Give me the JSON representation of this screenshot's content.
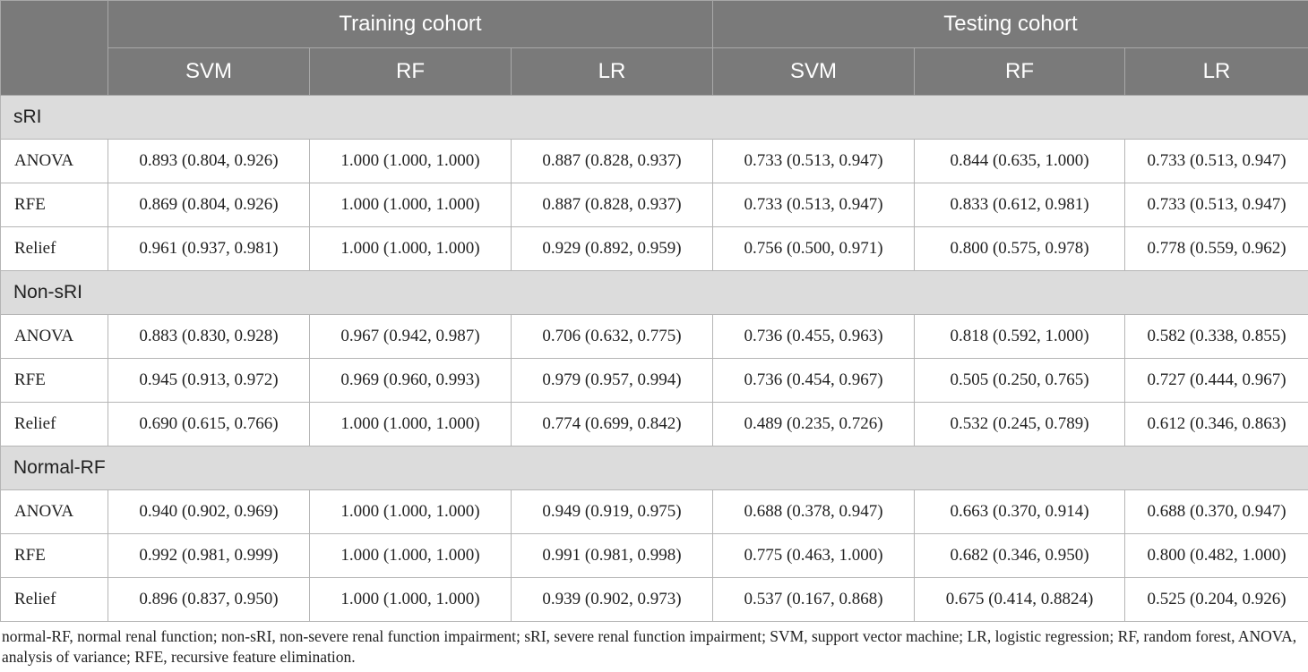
{
  "header": {
    "corner": "",
    "cohorts": [
      "Training cohort",
      "Testing cohort"
    ],
    "models": [
      "SVM",
      "RF",
      "LR",
      "SVM",
      "RF",
      "LR"
    ]
  },
  "groups": [
    {
      "name": "sRI",
      "rows": [
        {
          "method": "ANOVA",
          "values": [
            "0.893 (0.804, 0.926)",
            "1.000 (1.000, 1.000)",
            "0.887 (0.828, 0.937)",
            "0.733 (0.513, 0.947)",
            "0.844 (0.635, 1.000)",
            "0.733 (0.513, 0.947)"
          ]
        },
        {
          "method": "RFE",
          "values": [
            "0.869 (0.804, 0.926)",
            "1.000 (1.000, 1.000)",
            "0.887 (0.828, 0.937)",
            "0.733 (0.513, 0.947)",
            "0.833 (0.612, 0.981)",
            "0.733 (0.513, 0.947)"
          ]
        },
        {
          "method": "Relief",
          "values": [
            "0.961 (0.937, 0.981)",
            "1.000 (1.000, 1.000)",
            "0.929 (0.892, 0.959)",
            "0.756 (0.500, 0.971)",
            "0.800 (0.575, 0.978)",
            "0.778 (0.559, 0.962)"
          ]
        }
      ]
    },
    {
      "name": "Non-sRI",
      "rows": [
        {
          "method": "ANOVA",
          "values": [
            "0.883 (0.830, 0.928)",
            "0.967 (0.942, 0.987)",
            "0.706 (0.632, 0.775)",
            "0.736 (0.455, 0.963)",
            "0.818 (0.592, 1.000)",
            "0.582 (0.338, 0.855)"
          ]
        },
        {
          "method": "RFE",
          "values": [
            "0.945 (0.913, 0.972)",
            "0.969 (0.960, 0.993)",
            "0.979 (0.957, 0.994)",
            "0.736 (0.454, 0.967)",
            "0.505 (0.250, 0.765)",
            "0.727 (0.444, 0.967)"
          ]
        },
        {
          "method": "Relief",
          "values": [
            "0.690 (0.615, 0.766)",
            "1.000 (1.000, 1.000)",
            "0.774 (0.699, 0.842)",
            "0.489 (0.235, 0.726)",
            "0.532 (0.245, 0.789)",
            "0.612 (0.346, 0.863)"
          ]
        }
      ]
    },
    {
      "name": "Normal-RF",
      "rows": [
        {
          "method": "ANOVA",
          "values": [
            "0.940 (0.902, 0.969)",
            "1.000 (1.000, 1.000)",
            "0.949 (0.919, 0.975)",
            "0.688 (0.378, 0.947)",
            "0.663 (0.370, 0.914)",
            "0.688 (0.370, 0.947)"
          ]
        },
        {
          "method": "RFE",
          "values": [
            "0.992 (0.981, 0.999)",
            "1.000 (1.000, 1.000)",
            "0.991 (0.981, 0.998)",
            "0.775 (0.463, 1.000)",
            "0.682 (0.346, 0.950)",
            "0.800 (0.482, 1.000)"
          ]
        },
        {
          "method": "Relief",
          "values": [
            "0.896 (0.837, 0.950)",
            "1.000 (1.000, 1.000)",
            "0.939 (0.902, 0.973)",
            "0.537 (0.167, 0.868)",
            "0.675 (0.414, 0.8824)",
            "0.525 (0.204, 0.926)"
          ]
        }
      ]
    }
  ],
  "footnote": "normal-RF, normal renal function; non-sRI, non-severe renal function impairment; sRI, severe renal function impairment; SVM, support vector machine; LR, logistic regression; RF, random forest, ANOVA, analysis of variance; RFE, recursive feature elimination.",
  "colors": {
    "header_bg": "#7a7a7a",
    "header_text": "#ffffff",
    "group_bg": "#dcdcdc",
    "border": "#b5b5b5"
  }
}
